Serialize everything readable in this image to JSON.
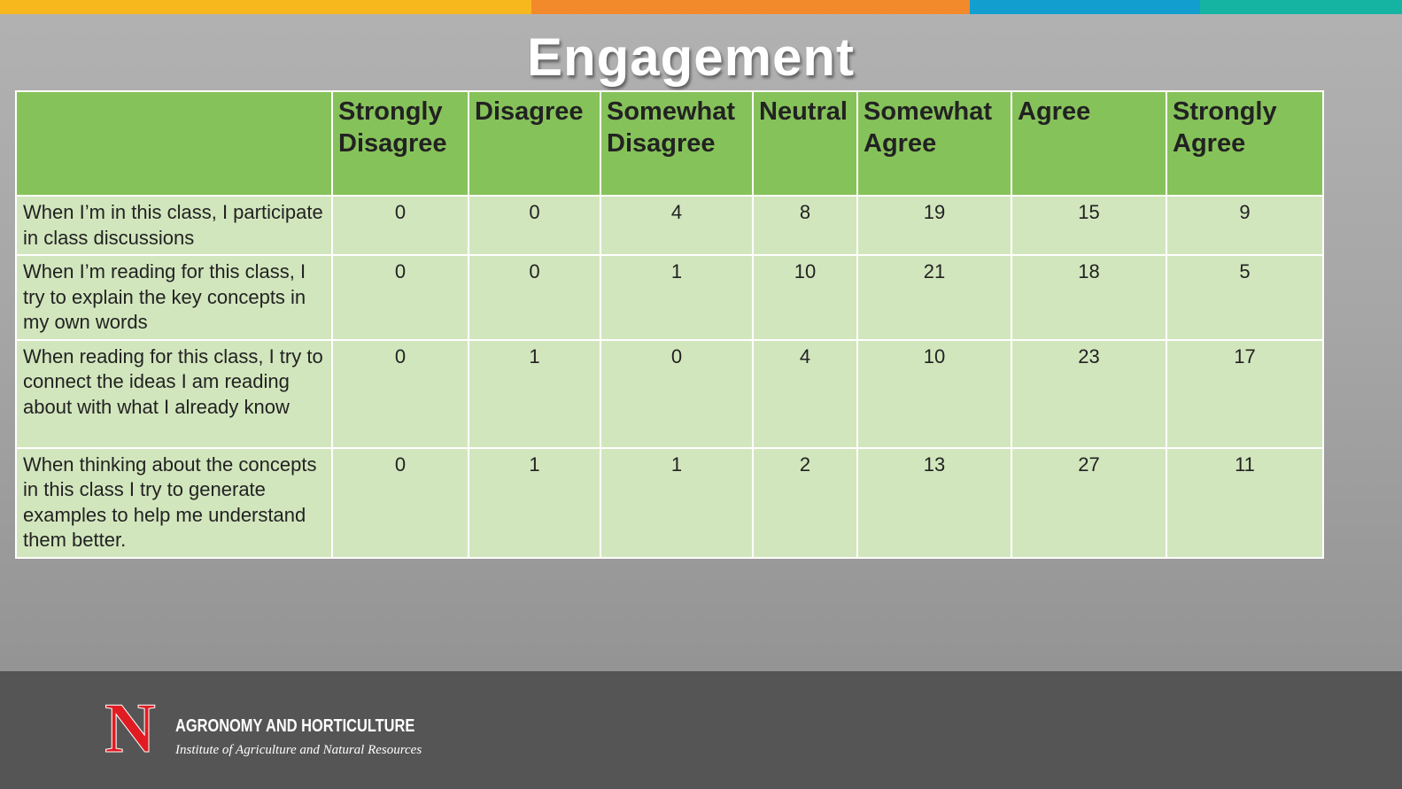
{
  "slide": {
    "title": "Engagement",
    "accent_colors": [
      "#f6b81d",
      "#f28a2c",
      "#129fd0",
      "#14b3a2"
    ]
  },
  "table": {
    "columns": [
      "",
      "Strongly Disagree",
      "Disagree",
      "Somewhat Disagree",
      "Neutral",
      "Somewhat Agree",
      "Agree",
      "Strongly Agree"
    ],
    "rows": [
      {
        "label": "When I’m in this class, I participate in class discussions",
        "values": [
          "0",
          "0",
          "4",
          "8",
          "19",
          "15",
          "9"
        ]
      },
      {
        "label": "When I’m reading for this class, I try to explain the key concepts in my own words",
        "values": [
          "0",
          "0",
          "1",
          "10",
          "21",
          "18",
          "5"
        ]
      },
      {
        "label": "When  reading for this class, I try to connect the ideas I am reading about with what I already know",
        "values": [
          "0",
          "1",
          "0",
          "4",
          "10",
          "23",
          "17"
        ]
      },
      {
        "label": "When thinking about the concepts in this class I try to generate examples to help me understand them better.",
        "values": [
          "0",
          "1",
          "1",
          "2",
          "13",
          "27",
          "11"
        ]
      }
    ]
  },
  "footer": {
    "logo_letter": "N",
    "department": "AGRONOMY AND HORTICULTURE",
    "institute": "Institute of Agriculture and Natural Resources"
  }
}
